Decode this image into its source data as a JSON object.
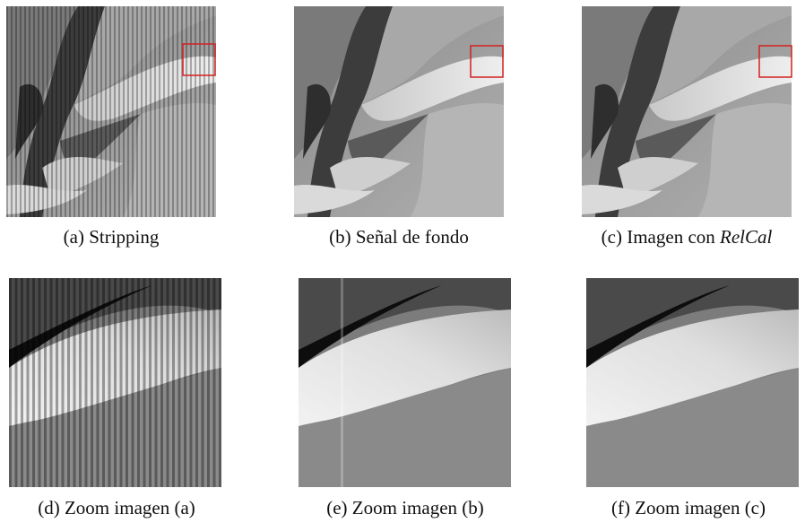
{
  "figure": {
    "panels": [
      {
        "label": "(a)",
        "caption": "Stripping"
      },
      {
        "label": "(b)",
        "caption": "Señal de fondo"
      },
      {
        "label": "(c)",
        "caption": "Imagen con",
        "caption_emphasis": "RelCal"
      },
      {
        "label": "(d)",
        "caption": "Zoom imagen (a)"
      },
      {
        "label": "(e)",
        "caption": "Zoom imagen (b)"
      },
      {
        "label": "(f)",
        "caption": "Zoom imagen (c)"
      }
    ]
  }
}
